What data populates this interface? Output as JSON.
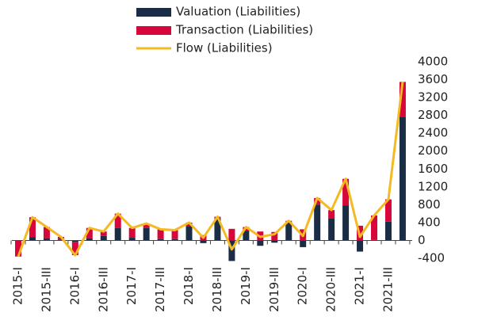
{
  "chart_data": {
    "type": "stacked-bar-line",
    "categories": [
      "2015-I",
      null,
      "2015-III",
      null,
      "2016-I",
      null,
      "2016-III",
      null,
      "2017-I",
      null,
      "2017-III",
      null,
      "2018-I",
      null,
      "2018-III",
      null,
      "2019-I",
      null,
      "2019-III",
      null,
      "2020-I",
      null,
      "2020-III",
      null,
      "2021-I",
      null,
      "2021-III",
      null
    ],
    "series": [
      {
        "name": "Valuation (Liabilities)",
        "color": "#1b2d44",
        "kind": "bar",
        "values": [
          0,
          70,
          50,
          20,
          -30,
          50,
          100,
          280,
          60,
          280,
          30,
          30,
          320,
          -60,
          500,
          -460,
          220,
          -120,
          -50,
          400,
          -150,
          800,
          500,
          780,
          -250,
          10,
          420,
          2770
        ]
      },
      {
        "name": "Transaction (Liabilities)",
        "color": "#d7063b",
        "kind": "bar",
        "values": [
          -360,
          450,
          250,
          60,
          -300,
          230,
          100,
          320,
          220,
          100,
          220,
          200,
          80,
          120,
          30,
          260,
          80,
          200,
          190,
          40,
          250,
          150,
          180,
          600,
          330,
          550,
          500,
          780
        ]
      },
      {
        "name": "Flow (Liabilities)",
        "color": "#f5b921",
        "kind": "line",
        "values": [
          -360,
          520,
          300,
          80,
          -330,
          280,
          200,
          600,
          280,
          380,
          250,
          230,
          400,
          60,
          530,
          -200,
          300,
          80,
          140,
          440,
          100,
          950,
          680,
          1380,
          80,
          560,
          920,
          3550
        ]
      }
    ],
    "ylim": [
      -400,
      4000
    ],
    "yticks": [
      -400,
      0,
      400,
      800,
      1200,
      1600,
      2000,
      2400,
      2800,
      3200,
      3600,
      4000
    ]
  }
}
